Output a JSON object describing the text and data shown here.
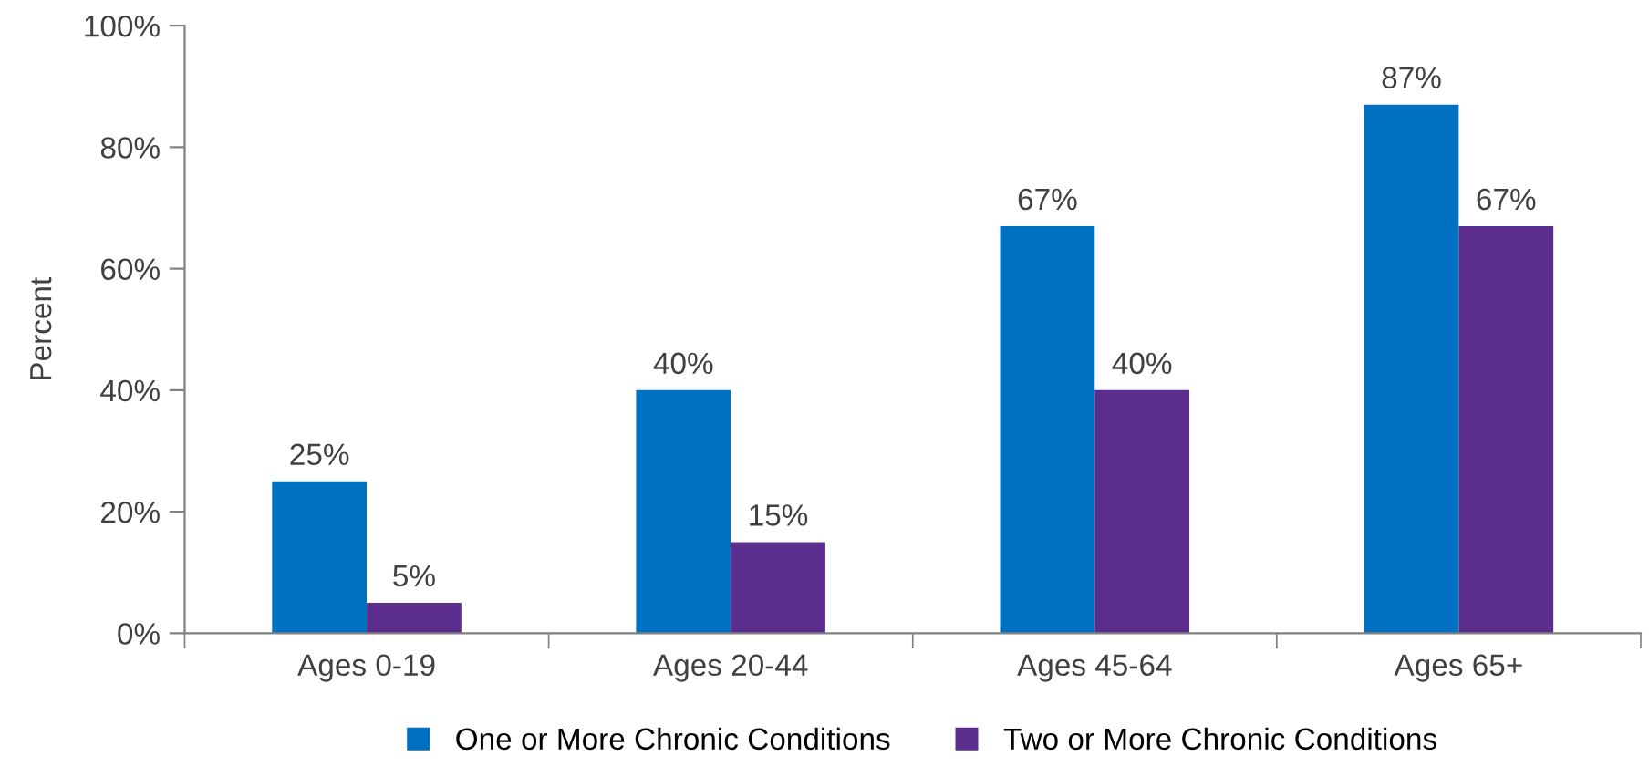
{
  "chart_data": {
    "type": "bar",
    "ylabel": "Percent",
    "categories": [
      "Ages 0-19",
      "Ages 20-44",
      "Ages 45-64",
      "Ages 65+"
    ],
    "series": [
      {
        "name": "One or More Chronic Conditions",
        "color": "#0070c0",
        "values": [
          25,
          40,
          67,
          87
        ],
        "value_labels": [
          "25%",
          "40%",
          "67%",
          "87%"
        ]
      },
      {
        "name": "Two or More Chronic Conditions",
        "color": "#5b2e8e",
        "values": [
          5,
          15,
          40,
          67
        ],
        "value_labels": [
          "5%",
          "15%",
          "40%",
          "67%"
        ]
      }
    ],
    "ylim": [
      0,
      100
    ],
    "yticks": [
      {
        "value": 0,
        "label": "0%"
      },
      {
        "value": 20,
        "label": "20%"
      },
      {
        "value": 40,
        "label": "40%"
      },
      {
        "value": 60,
        "label": "60%"
      },
      {
        "value": 80,
        "label": "80%"
      },
      {
        "value": 100,
        "label": "100%"
      }
    ],
    "grid": false,
    "legend": "bottom"
  }
}
